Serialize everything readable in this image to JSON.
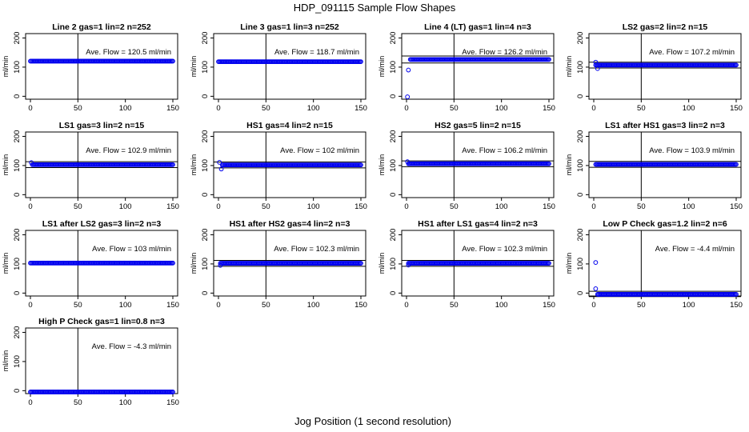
{
  "figure": {
    "title": "HDP_091115  Sample Flow Shapes",
    "xlabel": "Jog Position (1 second resolution)"
  },
  "chart_data": [
    {
      "type": "scatter",
      "title": "Line 2 gas=1 lin=2 n=252",
      "annotation": "Ave. Flow =  120.5  ml/min",
      "ylabel": "ml/min",
      "xlim": [
        0,
        150
      ],
      "ylim": [
        -10,
        215
      ],
      "xticks": [
        0,
        50,
        100,
        150
      ],
      "yticks": [
        0,
        100,
        200
      ],
      "vline": 50,
      "hlines": [],
      "steady": [
        {
          "x0": 0,
          "x1": 150,
          "y": 120.5
        }
      ],
      "outliers": []
    },
    {
      "type": "scatter",
      "title": "Line 3 gas=1 lin=3 n=252",
      "annotation": "Ave. Flow =  118.7  ml/min",
      "ylabel": "ml/min",
      "xlim": [
        0,
        150
      ],
      "ylim": [
        -10,
        215
      ],
      "xticks": [
        0,
        50,
        100,
        150
      ],
      "yticks": [
        0,
        100,
        200
      ],
      "vline": 50,
      "hlines": [],
      "steady": [
        {
          "x0": 0,
          "x1": 150,
          "y": 118.7
        }
      ],
      "outliers": []
    },
    {
      "type": "scatter",
      "title": "Line 4 (LT) gas=1 lin=4 n=3",
      "annotation": "Ave. Flow =  126.2  ml/min",
      "ylabel": "ml/min",
      "xlim": [
        0,
        150
      ],
      "ylim": [
        -10,
        215
      ],
      "xticks": [
        0,
        50,
        100,
        150
      ],
      "yticks": [
        0,
        100,
        200
      ],
      "vline": 50,
      "hlines": [
        114,
        138
      ],
      "steady": [
        {
          "x0": 4,
          "x1": 150,
          "y": 126.2
        }
      ],
      "outliers": [
        {
          "x": 1,
          "y": -2
        },
        {
          "x": 2,
          "y": 90
        }
      ]
    },
    {
      "type": "scatter",
      "title": "LS2 gas=2 lin=2 n=15",
      "annotation": "Ave. Flow =  107.2  ml/min",
      "ylabel": "ml/min",
      "xlim": [
        0,
        150
      ],
      "ylim": [
        -10,
        215
      ],
      "xticks": [
        0,
        50,
        100,
        150
      ],
      "yticks": [
        0,
        100,
        200
      ],
      "vline": 50,
      "hlines": [
        97,
        117
      ],
      "steady": [
        {
          "x0": 2,
          "x1": 150,
          "y": 107.2
        }
      ],
      "outliers": [
        {
          "x": 2,
          "y": 117
        },
        {
          "x": 4,
          "y": 95
        }
      ]
    },
    {
      "type": "scatter",
      "title": "LS1 gas=3 lin=2 n=15",
      "annotation": "Ave. Flow =  102.9  ml/min",
      "ylabel": "ml/min",
      "xlim": [
        0,
        150
      ],
      "ylim": [
        -10,
        215
      ],
      "xticks": [
        0,
        50,
        100,
        150
      ],
      "yticks": [
        0,
        100,
        200
      ],
      "vline": 50,
      "hlines": [
        93,
        113
      ],
      "steady": [
        {
          "x0": 2,
          "x1": 150,
          "y": 102.9
        }
      ],
      "outliers": [
        {
          "x": 1,
          "y": 110
        }
      ]
    },
    {
      "type": "scatter",
      "title": "HS1 gas=4 lin=2 n=15",
      "annotation": "Ave. Flow =  102  ml/min",
      "ylabel": "ml/min",
      "xlim": [
        0,
        150
      ],
      "ylim": [
        -10,
        215
      ],
      "xticks": [
        0,
        50,
        100,
        150
      ],
      "yticks": [
        0,
        100,
        200
      ],
      "vline": 50,
      "hlines": [
        92,
        112
      ],
      "steady": [
        {
          "x0": 4,
          "x1": 150,
          "y": 102
        }
      ],
      "outliers": [
        {
          "x": 1,
          "y": 111
        },
        {
          "x": 3,
          "y": 88
        }
      ]
    },
    {
      "type": "scatter",
      "title": "HS2 gas=5 lin=2 n=15",
      "annotation": "Ave. Flow =  106.2  ml/min",
      "ylabel": "ml/min",
      "xlim": [
        0,
        150
      ],
      "ylim": [
        -10,
        215
      ],
      "xticks": [
        0,
        50,
        100,
        150
      ],
      "yticks": [
        0,
        100,
        200
      ],
      "vline": 50,
      "hlines": [
        96,
        116
      ],
      "steady": [
        {
          "x0": 2,
          "x1": 150,
          "y": 106.2
        }
      ],
      "outliers": [
        {
          "x": 1,
          "y": 113
        }
      ]
    },
    {
      "type": "scatter",
      "title": "LS1 after HS1 gas=3 lin=2 n=3",
      "annotation": "Ave. Flow =  103.9  ml/min",
      "ylabel": "ml/min",
      "xlim": [
        0,
        150
      ],
      "ylim": [
        -10,
        215
      ],
      "xticks": [
        0,
        50,
        100,
        150
      ],
      "yticks": [
        0,
        100,
        200
      ],
      "vline": 50,
      "hlines": [
        94,
        114
      ],
      "steady": [
        {
          "x0": 2,
          "x1": 150,
          "y": 103.9
        }
      ],
      "outliers": []
    },
    {
      "type": "scatter",
      "title": "LS1 after LS2 gas=3 lin=2 n=3",
      "annotation": "Ave. Flow =  103  ml/min",
      "ylabel": "ml/min",
      "xlim": [
        0,
        150
      ],
      "ylim": [
        -10,
        215
      ],
      "xticks": [
        0,
        50,
        100,
        150
      ],
      "yticks": [
        0,
        100,
        200
      ],
      "vline": 50,
      "hlines": [],
      "steady": [
        {
          "x0": 0,
          "x1": 150,
          "y": 103
        }
      ],
      "outliers": []
    },
    {
      "type": "scatter",
      "title": "HS1 after HS2 gas=4 lin=2 n=3",
      "annotation": "Ave. Flow =  102.3  ml/min",
      "ylabel": "ml/min",
      "xlim": [
        0,
        150
      ],
      "ylim": [
        -10,
        215
      ],
      "xticks": [
        0,
        50,
        100,
        150
      ],
      "yticks": [
        0,
        100,
        200
      ],
      "vline": 50,
      "hlines": [
        92,
        112
      ],
      "steady": [
        {
          "x0": 2,
          "x1": 150,
          "y": 102.3
        }
      ],
      "outliers": [
        {
          "x": 2,
          "y": 95
        }
      ]
    },
    {
      "type": "scatter",
      "title": "HS1 after LS1 gas=4 lin=2 n=3",
      "annotation": "Ave. Flow =  102.3  ml/min",
      "ylabel": "ml/min",
      "xlim": [
        0,
        150
      ],
      "ylim": [
        -10,
        215
      ],
      "xticks": [
        0,
        50,
        100,
        150
      ],
      "yticks": [
        0,
        100,
        200
      ],
      "vline": 50,
      "hlines": [
        92,
        112
      ],
      "steady": [
        {
          "x0": 2,
          "x1": 150,
          "y": 102.3
        }
      ],
      "outliers": [
        {
          "x": 2,
          "y": 96
        }
      ]
    },
    {
      "type": "scatter",
      "title": "Low P Check gas=1.2 lin=2 n=6",
      "annotation": "Ave. Flow =  -4.4  ml/min",
      "ylabel": "ml/min",
      "xlim": [
        0,
        150
      ],
      "ylim": [
        -10,
        215
      ],
      "xticks": [
        0,
        50,
        100,
        150
      ],
      "yticks": [
        0,
        100,
        200
      ],
      "vline": 50,
      "hlines": [
        -12,
        6
      ],
      "steady": [
        {
          "x0": 4,
          "x1": 150,
          "y": -4.4
        }
      ],
      "outliers": [
        {
          "x": 2,
          "y": 105
        },
        {
          "x": 2,
          "y": 15
        }
      ]
    },
    {
      "type": "scatter",
      "title": "High P Check gas=1 lin=0.8 n=3",
      "annotation": "Ave. Flow =  -4.3  ml/min",
      "ylabel": "ml/min",
      "xlim": [
        0,
        150
      ],
      "ylim": [
        -10,
        215
      ],
      "xticks": [
        0,
        50,
        100,
        150
      ],
      "yticks": [
        0,
        100,
        200
      ],
      "vline": 50,
      "hlines": [],
      "steady": [
        {
          "x0": 0,
          "x1": 150,
          "y": -4.3
        }
      ],
      "outliers": []
    }
  ],
  "colors": {
    "points": "#0000ee",
    "axis": "#000000",
    "background": "#ffffff"
  }
}
